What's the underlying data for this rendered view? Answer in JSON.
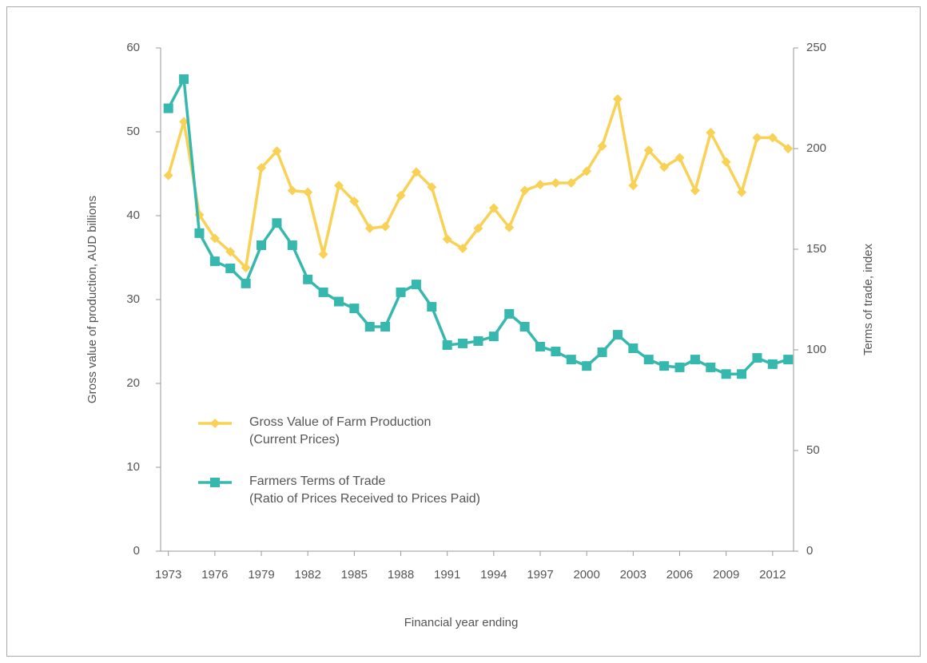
{
  "chart_data": {
    "type": "line",
    "x_label": "Financial year ending",
    "y_label": "Gross value of production, AUD billions",
    "y2_label": "Terms of trade, index",
    "x": [
      1973,
      1974,
      1975,
      1976,
      1977,
      1978,
      1979,
      1980,
      1981,
      1982,
      1983,
      1984,
      1985,
      1986,
      1987,
      1988,
      1989,
      1990,
      1991,
      1992,
      1993,
      1994,
      1995,
      1996,
      1997,
      1998,
      1999,
      2000,
      2001,
      2002,
      2003,
      2004,
      2005,
      2006,
      2007,
      2008,
      2009,
      2010,
      2011,
      2012,
      2013
    ],
    "series": [
      {
        "name": "Gross Value of Farm Production\n(Current Prices)",
        "color": "#f8d155",
        "marker": "diamond",
        "axis": "y",
        "values": [
          44.8,
          51.2,
          40.1,
          37.3,
          35.7,
          33.8,
          45.7,
          47.7,
          43.0,
          42.8,
          35.4,
          43.6,
          41.7,
          38.5,
          38.7,
          42.4,
          45.2,
          43.4,
          37.2,
          36.1,
          38.5,
          40.9,
          38.6,
          43.0,
          43.7,
          43.9,
          43.9,
          45.3,
          48.3,
          53.9,
          43.6,
          47.8,
          45.8,
          46.9,
          43.0,
          49.9,
          46.4,
          42.8,
          49.3,
          49.3,
          48.0
        ]
      },
      {
        "name": "Farmers Terms of Trade\n(Ratio of Prices Received to Prices Paid)",
        "color": "#36b8ae",
        "marker": "square",
        "axis": "y2",
        "values": [
          220,
          234.5,
          158,
          144,
          140.5,
          133,
          152,
          163,
          152,
          135,
          128.6,
          124,
          120.6,
          111.5,
          111.5,
          128.6,
          132.5,
          121.4,
          102.4,
          103.2,
          104.4,
          106.7,
          117.9,
          111.5,
          101.6,
          99.2,
          95.2,
          92,
          98.8,
          107.5,
          100.8,
          95.2,
          92,
          91.3,
          95.2,
          91.3,
          88,
          88,
          96,
          92.9,
          95.2
        ]
      }
    ],
    "xlim": [
      1972.5,
      2013.35
    ],
    "xticks": [
      1973,
      1976,
      1979,
      1982,
      1985,
      1988,
      1991,
      1994,
      1997,
      2000,
      2003,
      2006,
      2009,
      2012
    ],
    "ylim": [
      0,
      60
    ],
    "yticks": [
      0,
      10,
      20,
      30,
      40,
      50,
      60
    ],
    "y2lim": [
      0,
      250
    ],
    "y2ticks": [
      0,
      50,
      100,
      150,
      200,
      250
    ],
    "grid": false
  }
}
